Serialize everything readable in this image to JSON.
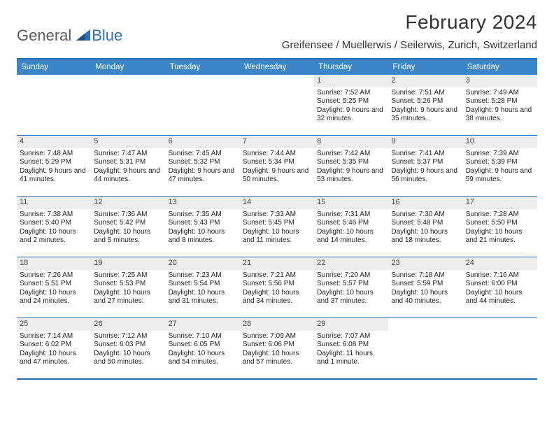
{
  "brand": {
    "word1": "General",
    "word2": "Blue"
  },
  "title": "February 2024",
  "location": "Greifensee / Muellerwis / Seilerwis, Zurich, Switzerland",
  "colors": {
    "header_bg": "#3a86c8",
    "border": "#2a6bad",
    "daynum_bg": "#eceded",
    "logo_gray": "#5a5a5a",
    "logo_blue": "#2f6fb3"
  },
  "dow": [
    "Sunday",
    "Monday",
    "Tuesday",
    "Wednesday",
    "Thursday",
    "Friday",
    "Saturday"
  ],
  "weeks": [
    [
      null,
      null,
      null,
      null,
      {
        "n": "1",
        "sr": "7:52 AM",
        "ss": "5:25 PM",
        "dl": "9 hours and 32 minutes."
      },
      {
        "n": "2",
        "sr": "7:51 AM",
        "ss": "5:26 PM",
        "dl": "9 hours and 35 minutes."
      },
      {
        "n": "3",
        "sr": "7:49 AM",
        "ss": "5:28 PM",
        "dl": "9 hours and 38 minutes."
      }
    ],
    [
      {
        "n": "4",
        "sr": "7:48 AM",
        "ss": "5:29 PM",
        "dl": "9 hours and 41 minutes."
      },
      {
        "n": "5",
        "sr": "7:47 AM",
        "ss": "5:31 PM",
        "dl": "9 hours and 44 minutes."
      },
      {
        "n": "6",
        "sr": "7:45 AM",
        "ss": "5:32 PM",
        "dl": "9 hours and 47 minutes."
      },
      {
        "n": "7",
        "sr": "7:44 AM",
        "ss": "5:34 PM",
        "dl": "9 hours and 50 minutes."
      },
      {
        "n": "8",
        "sr": "7:42 AM",
        "ss": "5:35 PM",
        "dl": "9 hours and 53 minutes."
      },
      {
        "n": "9",
        "sr": "7:41 AM",
        "ss": "5:37 PM",
        "dl": "9 hours and 56 minutes."
      },
      {
        "n": "10",
        "sr": "7:39 AM",
        "ss": "5:39 PM",
        "dl": "9 hours and 59 minutes."
      }
    ],
    [
      {
        "n": "11",
        "sr": "7:38 AM",
        "ss": "5:40 PM",
        "dl": "10 hours and 2 minutes."
      },
      {
        "n": "12",
        "sr": "7:36 AM",
        "ss": "5:42 PM",
        "dl": "10 hours and 5 minutes."
      },
      {
        "n": "13",
        "sr": "7:35 AM",
        "ss": "5:43 PM",
        "dl": "10 hours and 8 minutes."
      },
      {
        "n": "14",
        "sr": "7:33 AM",
        "ss": "5:45 PM",
        "dl": "10 hours and 11 minutes."
      },
      {
        "n": "15",
        "sr": "7:31 AM",
        "ss": "5:46 PM",
        "dl": "10 hours and 14 minutes."
      },
      {
        "n": "16",
        "sr": "7:30 AM",
        "ss": "5:48 PM",
        "dl": "10 hours and 18 minutes."
      },
      {
        "n": "17",
        "sr": "7:28 AM",
        "ss": "5:50 PM",
        "dl": "10 hours and 21 minutes."
      }
    ],
    [
      {
        "n": "18",
        "sr": "7:26 AM",
        "ss": "5:51 PM",
        "dl": "10 hours and 24 minutes."
      },
      {
        "n": "19",
        "sr": "7:25 AM",
        "ss": "5:53 PM",
        "dl": "10 hours and 27 minutes."
      },
      {
        "n": "20",
        "sr": "7:23 AM",
        "ss": "5:54 PM",
        "dl": "10 hours and 31 minutes."
      },
      {
        "n": "21",
        "sr": "7:21 AM",
        "ss": "5:56 PM",
        "dl": "10 hours and 34 minutes."
      },
      {
        "n": "22",
        "sr": "7:20 AM",
        "ss": "5:57 PM",
        "dl": "10 hours and 37 minutes."
      },
      {
        "n": "23",
        "sr": "7:18 AM",
        "ss": "5:59 PM",
        "dl": "10 hours and 40 minutes."
      },
      {
        "n": "24",
        "sr": "7:16 AM",
        "ss": "6:00 PM",
        "dl": "10 hours and 44 minutes."
      }
    ],
    [
      {
        "n": "25",
        "sr": "7:14 AM",
        "ss": "6:02 PM",
        "dl": "10 hours and 47 minutes."
      },
      {
        "n": "26",
        "sr": "7:12 AM",
        "ss": "6:03 PM",
        "dl": "10 hours and 50 minutes."
      },
      {
        "n": "27",
        "sr": "7:10 AM",
        "ss": "6:05 PM",
        "dl": "10 hours and 54 minutes."
      },
      {
        "n": "28",
        "sr": "7:09 AM",
        "ss": "6:06 PM",
        "dl": "10 hours and 57 minutes."
      },
      {
        "n": "29",
        "sr": "7:07 AM",
        "ss": "6:08 PM",
        "dl": "11 hours and 1 minute."
      },
      null,
      null
    ]
  ],
  "labels": {
    "sunrise": "Sunrise: ",
    "sunset": "Sunset: ",
    "daylight": "Daylight: "
  }
}
